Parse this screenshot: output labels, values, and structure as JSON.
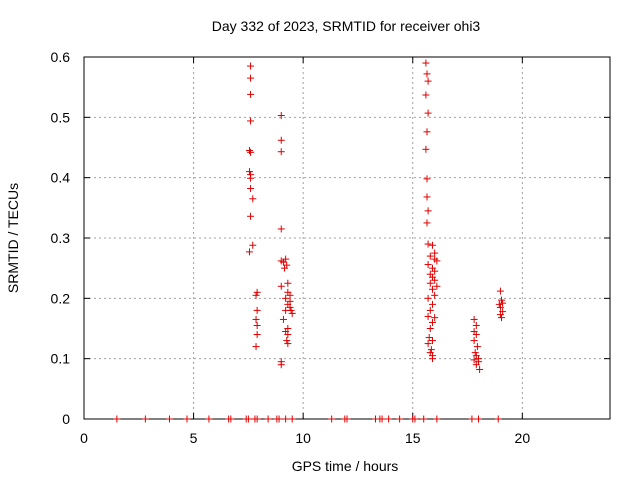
{
  "chart_data": {
    "type": "scatter",
    "title": "Day 332 of 2023, SRMTID for receiver ohi3",
    "xlabel": "GPS time / hours",
    "ylabel": "SRMTID / TECUs",
    "xlim": [
      0,
      24
    ],
    "ylim": [
      0,
      0.6
    ],
    "x_ticks": [
      0,
      5,
      10,
      15,
      20
    ],
    "y_ticks": [
      0,
      0.1,
      0.2,
      0.3,
      0.4,
      0.5,
      0.6
    ],
    "x_tick_labels": [
      "0",
      "5",
      "10",
      "15",
      "20"
    ],
    "y_tick_labels": [
      "0",
      "0.1",
      "0.2",
      "0.3",
      "0.4",
      "0.5",
      "0.6"
    ],
    "grid": true,
    "marker": "+",
    "marker_color": "#e00000",
    "series": [
      {
        "name": "SRMTID",
        "points": [
          [
            1.5,
            0
          ],
          [
            2.8,
            0
          ],
          [
            3.9,
            0
          ],
          [
            4.7,
            0
          ],
          [
            5.7,
            0
          ],
          [
            6.6,
            0
          ],
          [
            6.7,
            0
          ],
          [
            7.4,
            0
          ],
          [
            7.5,
            0
          ],
          [
            7.8,
            0
          ],
          [
            7.9,
            0
          ],
          [
            8.4,
            0
          ],
          [
            8.8,
            0
          ],
          [
            8.9,
            0
          ],
          [
            9.2,
            0
          ],
          [
            9.5,
            0
          ],
          [
            11.3,
            0
          ],
          [
            11.9,
            0
          ],
          [
            12.0,
            0
          ],
          [
            13.3,
            0
          ],
          [
            13.5,
            0
          ],
          [
            13.6,
            0
          ],
          [
            13.9,
            0
          ],
          [
            14.4,
            0
          ],
          [
            15.0,
            0
          ],
          [
            15.1,
            0
          ],
          [
            15.5,
            0
          ],
          [
            16.1,
            0
          ],
          [
            17.7,
            0
          ],
          [
            18.0,
            0
          ],
          [
            18.9,
            0
          ],
          [
            7.6,
            0.585
          ],
          [
            7.6,
            0.565
          ],
          [
            7.6,
            0.538
          ],
          [
            7.6,
            0.494
          ],
          [
            7.55,
            0.445
          ],
          [
            7.6,
            0.442
          ],
          [
            7.55,
            0.41
          ],
          [
            7.6,
            0.405
          ],
          [
            7.6,
            0.399
          ],
          [
            7.6,
            0.382
          ],
          [
            7.7,
            0.365
          ],
          [
            7.6,
            0.336
          ],
          [
            7.7,
            0.288
          ],
          [
            7.55,
            0.277
          ],
          [
            7.9,
            0.21
          ],
          [
            7.85,
            0.205
          ],
          [
            7.9,
            0.18
          ],
          [
            7.85,
            0.165
          ],
          [
            7.9,
            0.155
          ],
          [
            7.9,
            0.14
          ],
          [
            7.85,
            0.12
          ],
          [
            9.0,
            0.503
          ],
          [
            9.0,
            0.462
          ],
          [
            9.0,
            0.443
          ],
          [
            9.0,
            0.315
          ],
          [
            9.0,
            0.262
          ],
          [
            9.1,
            0.26
          ],
          [
            9.2,
            0.265
          ],
          [
            9.25,
            0.255
          ],
          [
            9.15,
            0.25
          ],
          [
            9.0,
            0.22
          ],
          [
            9.3,
            0.225
          ],
          [
            9.3,
            0.21
          ],
          [
            9.4,
            0.205
          ],
          [
            9.2,
            0.2
          ],
          [
            9.4,
            0.195
          ],
          [
            9.3,
            0.19
          ],
          [
            9.4,
            0.185
          ],
          [
            9.2,
            0.18
          ],
          [
            9.45,
            0.18
          ],
          [
            9.5,
            0.175
          ],
          [
            9.1,
            0.165
          ],
          [
            9.3,
            0.15
          ],
          [
            9.2,
            0.145
          ],
          [
            9.3,
            0.14
          ],
          [
            9.25,
            0.13
          ],
          [
            9.3,
            0.125
          ],
          [
            9.0,
            0.095
          ],
          [
            9.0,
            0.09
          ],
          [
            15.6,
            0.59
          ],
          [
            15.65,
            0.572
          ],
          [
            15.7,
            0.56
          ],
          [
            15.6,
            0.537
          ],
          [
            15.7,
            0.507
          ],
          [
            15.65,
            0.476
          ],
          [
            15.6,
            0.447
          ],
          [
            15.65,
            0.398
          ],
          [
            15.65,
            0.368
          ],
          [
            15.7,
            0.345
          ],
          [
            15.65,
            0.325
          ],
          [
            15.7,
            0.29
          ],
          [
            15.9,
            0.288
          ],
          [
            16.0,
            0.275
          ],
          [
            15.8,
            0.27
          ],
          [
            16.0,
            0.265
          ],
          [
            16.1,
            0.262
          ],
          [
            15.7,
            0.256
          ],
          [
            15.9,
            0.25
          ],
          [
            16.0,
            0.245
          ],
          [
            15.8,
            0.24
          ],
          [
            15.9,
            0.235
          ],
          [
            16.0,
            0.23
          ],
          [
            15.8,
            0.225
          ],
          [
            16.1,
            0.22
          ],
          [
            15.9,
            0.215
          ],
          [
            15.7,
            0.2
          ],
          [
            16.0,
            0.205
          ],
          [
            15.9,
            0.19
          ],
          [
            15.8,
            0.18
          ],
          [
            15.7,
            0.17
          ],
          [
            16.0,
            0.168
          ],
          [
            15.9,
            0.16
          ],
          [
            15.8,
            0.15
          ],
          [
            15.75,
            0.135
          ],
          [
            15.9,
            0.13
          ],
          [
            15.7,
            0.125
          ],
          [
            15.85,
            0.115
          ],
          [
            15.8,
            0.11
          ],
          [
            15.9,
            0.105
          ],
          [
            15.9,
            0.1
          ],
          [
            17.8,
            0.165
          ],
          [
            17.9,
            0.155
          ],
          [
            17.8,
            0.145
          ],
          [
            17.9,
            0.14
          ],
          [
            17.8,
            0.13
          ],
          [
            17.95,
            0.12
          ],
          [
            17.85,
            0.11
          ],
          [
            17.9,
            0.105
          ],
          [
            18.0,
            0.1
          ],
          [
            17.8,
            0.098
          ],
          [
            18.0,
            0.095
          ],
          [
            17.9,
            0.09
          ],
          [
            18.05,
            0.082
          ],
          [
            19.0,
            0.212
          ],
          [
            19.05,
            0.197
          ],
          [
            19.1,
            0.192
          ],
          [
            18.95,
            0.19
          ],
          [
            19.0,
            0.185
          ],
          [
            19.1,
            0.178
          ],
          [
            19.0,
            0.173
          ],
          [
            19.05,
            0.168
          ]
        ]
      }
    ]
  }
}
